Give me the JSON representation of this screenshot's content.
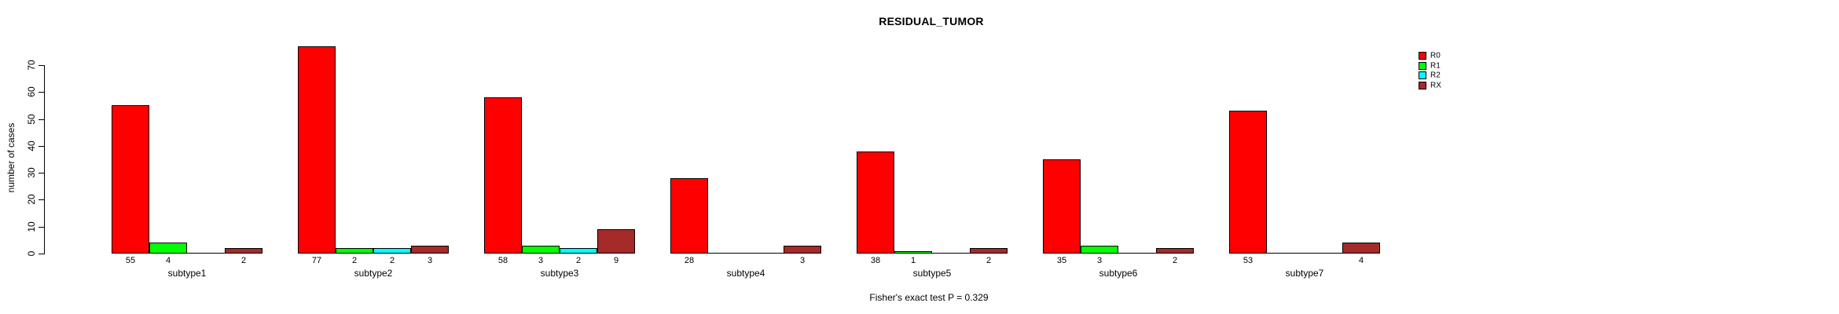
{
  "header": {
    "title": "RESIDUAL_TUMOR"
  },
  "chart_data": {
    "type": "bar",
    "grouped": true,
    "title": "RESIDUAL_TUMOR",
    "xlabel": "",
    "ylabel": "number of cases",
    "categories": [
      "subtype1",
      "subtype2",
      "subtype3",
      "subtype4",
      "subtype5",
      "subtype6",
      "subtype7"
    ],
    "series": [
      {
        "name": "R0",
        "color": "#ff0000",
        "values": [
          55,
          77,
          58,
          28,
          38,
          35,
          53
        ]
      },
      {
        "name": "R1",
        "color": "#00ff00",
        "values": [
          4,
          2,
          3,
          0,
          1,
          3,
          0
        ]
      },
      {
        "name": "R2",
        "color": "#00ffff",
        "values": [
          0,
          2,
          2,
          0,
          0,
          0,
          0
        ]
      },
      {
        "name": "RX",
        "color": "#a52a2a",
        "values": [
          2,
          3,
          9,
          3,
          2,
          2,
          4
        ]
      }
    ],
    "yticks": [
      0,
      10,
      20,
      30,
      40,
      50,
      60,
      70
    ],
    "ylim": [
      0,
      77
    ],
    "grid": false,
    "legend_position": "top-right",
    "bar_border_color": "#000000",
    "value_labels": "non-zero counts printed below each bar",
    "annotation": "Fisher's exact test P = 0.329"
  },
  "footer": {
    "caption": "Fisher's exact test P = 0.329"
  }
}
